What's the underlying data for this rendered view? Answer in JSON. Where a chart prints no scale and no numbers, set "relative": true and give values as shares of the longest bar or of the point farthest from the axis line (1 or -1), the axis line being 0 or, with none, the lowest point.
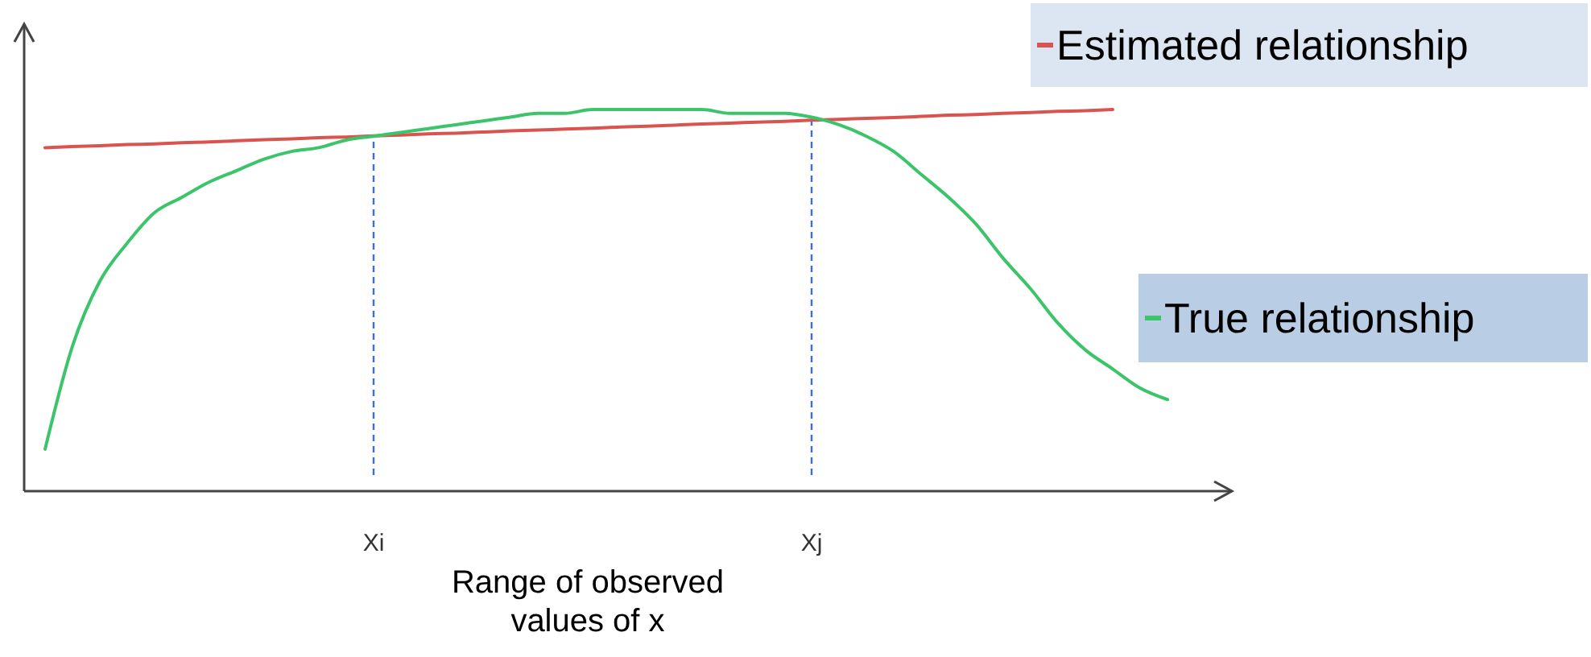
{
  "chart_data": {
    "type": "line",
    "relative": true,
    "xlabel": "Range of observed values of x",
    "legend": "right",
    "marker": "none",
    "line_style": "solid",
    "categories": [
      null,
      null,
      null,
      null,
      null,
      null,
      null,
      null,
      null,
      null,
      null,
      null,
      "Xi",
      null,
      null,
      null,
      null,
      null,
      null,
      null,
      null,
      null,
      null,
      null,
      null,
      null,
      null,
      null,
      "Xj",
      null,
      null,
      null,
      null,
      null,
      null,
      null,
      null,
      null,
      null,
      null,
      null,
      null
    ],
    "series": [
      {
        "name": "Estimated relationship",
        "color": "#d9534f",
        "values": [
          0.9,
          0.903,
          0.905,
          0.908,
          0.91,
          0.913,
          0.915,
          0.918,
          0.921,
          0.923,
          0.926,
          0.928,
          0.931,
          0.933,
          0.936,
          0.938,
          0.941,
          0.944,
          0.946,
          0.949,
          0.951,
          0.954,
          0.956,
          0.959,
          0.962,
          0.964,
          0.967,
          0.969,
          0.972,
          0.974,
          0.977,
          0.979,
          0.982,
          0.985,
          0.987,
          0.99,
          0.992,
          0.995,
          0.997,
          1.0,
          null,
          null
        ]
      },
      {
        "name": "True relationship",
        "color": "#3cc46a",
        "values": [
          0.11,
          0.38,
          0.55,
          0.65,
          0.73,
          0.77,
          0.81,
          0.84,
          0.87,
          0.89,
          0.9,
          0.92,
          0.93,
          0.94,
          0.95,
          0.96,
          0.97,
          0.98,
          0.99,
          0.99,
          1.0,
          1.0,
          1.0,
          1.0,
          1.0,
          0.99,
          0.99,
          0.99,
          0.98,
          0.96,
          0.93,
          0.89,
          0.83,
          0.77,
          0.7,
          0.61,
          0.53,
          0.44,
          0.37,
          0.32,
          0.27,
          0.24
        ]
      }
    ],
    "ref_lines": [
      {
        "axis": "x",
        "value": "Xi",
        "color": "#3d6cf0",
        "line_style": "dashed"
      },
      {
        "axis": "x",
        "value": "Xj",
        "color": "#3d6cf0",
        "line_style": "dashed"
      }
    ]
  }
}
